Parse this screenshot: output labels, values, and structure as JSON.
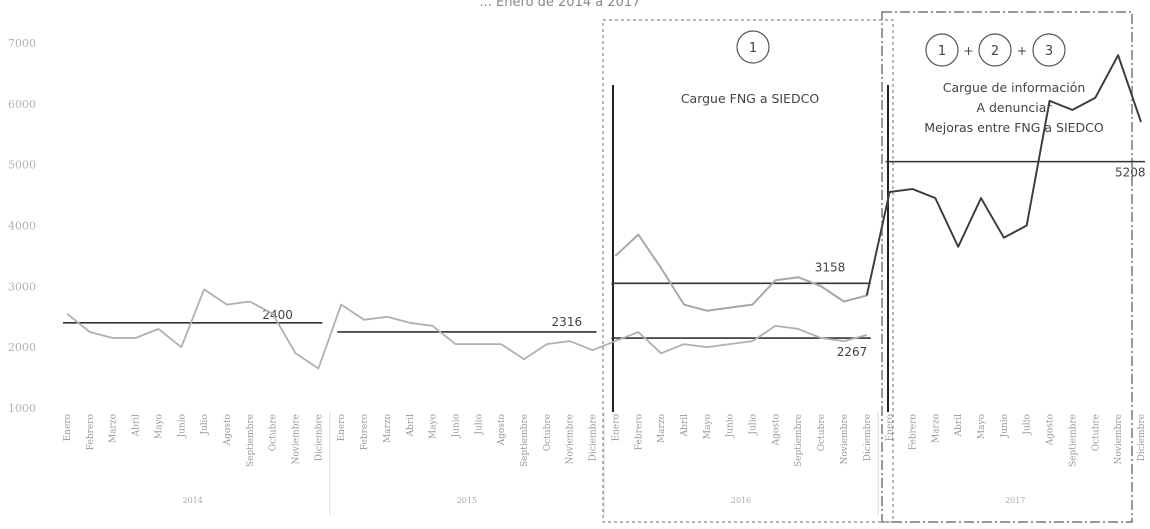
{
  "chart_data": {
    "type": "line",
    "title": "... Enero de 2014 a 2017",
    "y_ticks": [
      "7000",
      "6000",
      "5000",
      "4000",
      "3000",
      "2000",
      "1000"
    ],
    "ylim": [
      1000,
      7000
    ],
    "months": [
      "Enero",
      "Febrero",
      "Marzo",
      "Abril",
      "Mayo",
      "Junio",
      "Julio",
      "Agosto",
      "Septiembre",
      "Octubre",
      "Noviembre",
      "Diciembre"
    ],
    "years": [
      "2014",
      "2015",
      "2016",
      "2017"
    ],
    "series": [
      {
        "values": [
          2550,
          2250,
          2150,
          2150,
          2300,
          2000,
          2950,
          2700,
          2750,
          2550,
          1900,
          1650,
          2700,
          2450,
          2500,
          2400,
          2350,
          2050,
          2050,
          2050,
          1800,
          2050,
          2100,
          1950,
          2100,
          2250,
          1900,
          2050,
          2000,
          2050,
          2100,
          2350,
          2300,
          2150,
          2100,
          2200
        ]
      },
      {
        "values": [
          3500,
          3850,
          3300,
          2700,
          2600,
          2650,
          2700,
          3100,
          3150,
          3000,
          2750,
          2850,
          4550,
          4600,
          4450,
          3650,
          4450,
          3800,
          4000,
          6050,
          5900,
          6100,
          6800,
          5700
        ]
      }
    ],
    "averages": [
      {
        "label": "2400",
        "value": 2400
      },
      {
        "label": "2316",
        "value": 2250
      },
      {
        "label": "2267",
        "value": 2150
      },
      {
        "label": "3158",
        "value": 3050
      },
      {
        "label": "5208",
        "value": 5050
      }
    ],
    "annotations": {
      "box1_circle": "1",
      "box1_text": "Cargue FNG a SIEDCO",
      "box2_circles": [
        "1",
        "2",
        "3"
      ],
      "box2_plus": "+",
      "box2_lines": [
        "Cargue de información",
        "A denunciar",
        "Mejoras entre FNG a SIEDCO"
      ]
    }
  }
}
